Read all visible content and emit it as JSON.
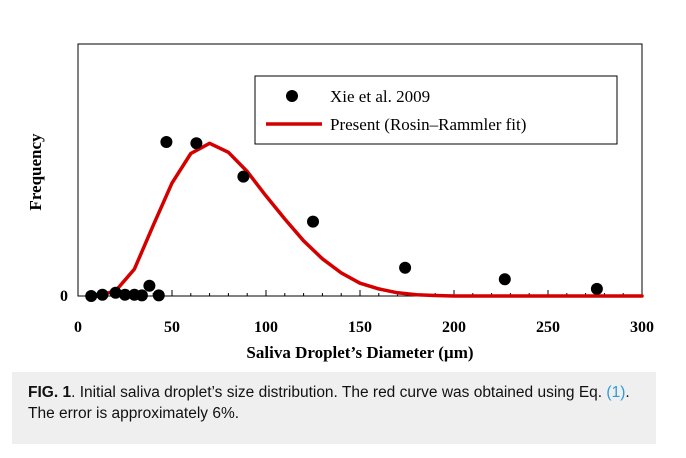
{
  "chart_data": {
    "type": "scatter",
    "xlabel": "Saliva Droplet’s Diameter (µm)",
    "ylabel": "Frequency",
    "xlim": [
      0,
      300
    ],
    "ylim": [
      0,
      1.2
    ],
    "xticks": [
      "0",
      "50",
      "100",
      "150",
      "200",
      "250",
      "300"
    ],
    "yticks": [
      "0"
    ],
    "grid": false,
    "legend_position": "top-right",
    "series": [
      {
        "name": "Xie et al. 2009",
        "kind": "points",
        "color": "#000000",
        "x": [
          7,
          13,
          20,
          25,
          30,
          34,
          38,
          43,
          47,
          63,
          88,
          125,
          174,
          227,
          276
        ],
        "y": [
          0.0,
          0.01,
          0.025,
          0.01,
          0.01,
          0.005,
          0.08,
          0.005,
          1.2,
          1.19,
          0.93,
          0.58,
          0.22,
          0.13,
          0.055
        ]
      },
      {
        "name": "Present (Rosin–Rammler fit)",
        "kind": "line",
        "color": "#d40000",
        "x": [
          10,
          20,
          30,
          40,
          50,
          60,
          70,
          80,
          90,
          100,
          110,
          120,
          130,
          140,
          150,
          160,
          170,
          180,
          190,
          200,
          220,
          250,
          300
        ],
        "y": [
          0.0,
          0.04,
          0.21,
          0.55,
          0.88,
          1.11,
          1.19,
          1.12,
          0.97,
          0.78,
          0.6,
          0.43,
          0.29,
          0.18,
          0.1,
          0.055,
          0.025,
          0.01,
          0.004,
          0.0,
          0.0,
          0.0,
          0.0
        ]
      }
    ]
  },
  "caption": {
    "fig_label": "FIG. 1",
    "text_before_ref": ". Initial saliva droplet’s size distribution. The red curve was obtained using Eq. ",
    "ref": "(1)",
    "text_after_ref": ". The error is approximately 6%."
  }
}
